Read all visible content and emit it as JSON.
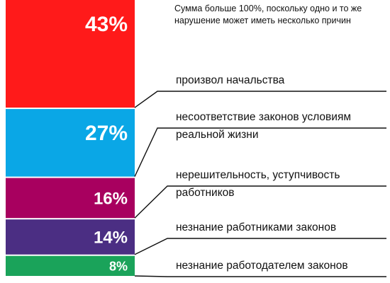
{
  "chart_data": {
    "type": "bar",
    "layout": "stacked-single-column",
    "note": [
      "Сумма больше 100%, поскольку одно и то же",
      "нарушение может иметь несколько причин"
    ],
    "categories": [
      [
        "произвол начальства"
      ],
      [
        "несоответствие законов условиям",
        "реальной жизни"
      ],
      [
        "нерешительность, уступчивость",
        "работников"
      ],
      [
        "незнание работниками законов"
      ],
      [
        "незнание работодателем законов"
      ]
    ],
    "values": [
      43,
      27,
      16,
      14,
      8
    ],
    "value_labels": [
      "43%",
      "27%",
      "16%",
      "14%",
      "8%"
    ],
    "colors": [
      "#ff1a1a",
      "#0aa7e6",
      "#a8005f",
      "#4b2e83",
      "#1aa35a"
    ],
    "unit": "%",
    "legend": "none",
    "grid": false
  }
}
